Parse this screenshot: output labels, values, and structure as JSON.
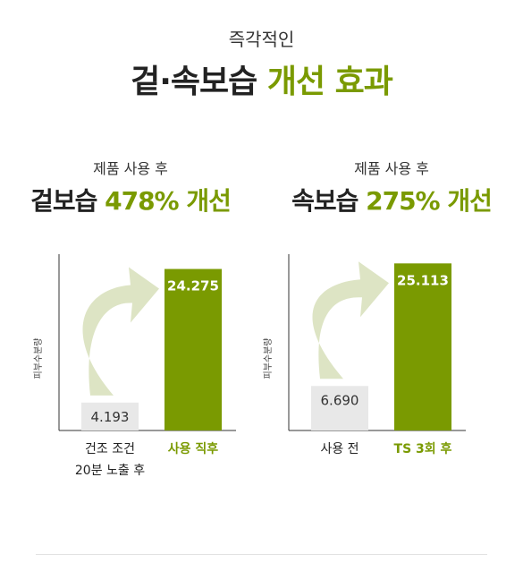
{
  "header": {
    "subtitle": "즉각적인",
    "title_part1": "겉·속보습",
    "title_part2": "개선 효과"
  },
  "blocks": [
    {
      "caption": "제품 사용 후",
      "metric_name": "겉보습",
      "metric_value": "478%",
      "metric_suffix": "개선"
    },
    {
      "caption": "제품 사용 후",
      "metric_name": "속보습",
      "metric_value": "275%",
      "metric_suffix": "개선"
    }
  ],
  "colors": {
    "accent": "#7a9a01",
    "bar_before": "#e8e8e8",
    "arrow": "#dde4c4",
    "text": "#222222"
  },
  "chart_data": [
    {
      "type": "bar",
      "ylabel": "피부수분량",
      "categories": [
        "건조 조건\n20분 노출 후",
        "사용 직후"
      ],
      "values": [
        4.193,
        24.275
      ],
      "value_labels": [
        "4.193",
        "24.275"
      ],
      "ylim": [
        0,
        26.5
      ],
      "highlight_index": 1,
      "arrow": true
    },
    {
      "type": "bar",
      "ylabel": "피부수분량",
      "categories": [
        "사용 전",
        "TS 3회 후"
      ],
      "values": [
        6.69,
        25.113
      ],
      "value_labels": [
        "6.690",
        "25.113"
      ],
      "ylim": [
        0,
        26.5
      ],
      "highlight_index": 1,
      "arrow": true
    }
  ]
}
